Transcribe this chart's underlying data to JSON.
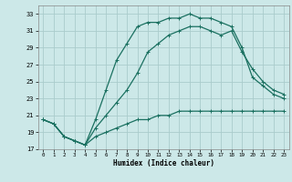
{
  "xlabel": "Humidex (Indice chaleur)",
  "xlim": [
    -0.5,
    23.5
  ],
  "ylim": [
    17,
    34
  ],
  "yticks": [
    17,
    19,
    21,
    23,
    25,
    27,
    29,
    31,
    33
  ],
  "xticks": [
    0,
    1,
    2,
    3,
    4,
    5,
    6,
    7,
    8,
    9,
    10,
    11,
    12,
    13,
    14,
    15,
    16,
    17,
    18,
    19,
    20,
    21,
    22,
    23
  ],
  "bg_color": "#cce8e8",
  "grid_color": "#aacccc",
  "line_color": "#1a7060",
  "line1_x": [
    0,
    1,
    2,
    3,
    4,
    5,
    6,
    7,
    8,
    9,
    10,
    11,
    12,
    13,
    14,
    15,
    16,
    17,
    18,
    19,
    20,
    21,
    22,
    23
  ],
  "line1_y": [
    20.5,
    20.0,
    18.5,
    18.0,
    17.5,
    18.5,
    19.0,
    19.5,
    20.0,
    20.5,
    20.5,
    21.0,
    21.0,
    21.5,
    21.5,
    21.5,
    21.5,
    21.5,
    21.5,
    21.5,
    21.5,
    21.5,
    21.5,
    21.5
  ],
  "line2_x": [
    0,
    1,
    2,
    3,
    4,
    5,
    6,
    7,
    8,
    9,
    10,
    11,
    12,
    13,
    14,
    15,
    16,
    17,
    18,
    19,
    20,
    21,
    22,
    23
  ],
  "line2_y": [
    20.5,
    20.0,
    18.5,
    18.0,
    17.5,
    20.5,
    24.0,
    27.5,
    29.5,
    31.5,
    32.0,
    32.0,
    32.5,
    32.5,
    33.0,
    32.5,
    32.5,
    32.0,
    31.5,
    29.0,
    25.5,
    24.5,
    23.5,
    23.0
  ],
  "line3_x": [
    0,
    1,
    2,
    3,
    4,
    5,
    6,
    7,
    8,
    9,
    10,
    11,
    12,
    13,
    14,
    15,
    16,
    17,
    18,
    19,
    20,
    21,
    22,
    23
  ],
  "line3_y": [
    20.5,
    20.0,
    18.5,
    18.0,
    17.5,
    19.5,
    21.0,
    22.5,
    24.0,
    26.0,
    28.5,
    29.5,
    30.5,
    31.0,
    31.5,
    31.5,
    31.0,
    30.5,
    31.0,
    28.5,
    26.5,
    25.0,
    24.0,
    23.5
  ]
}
